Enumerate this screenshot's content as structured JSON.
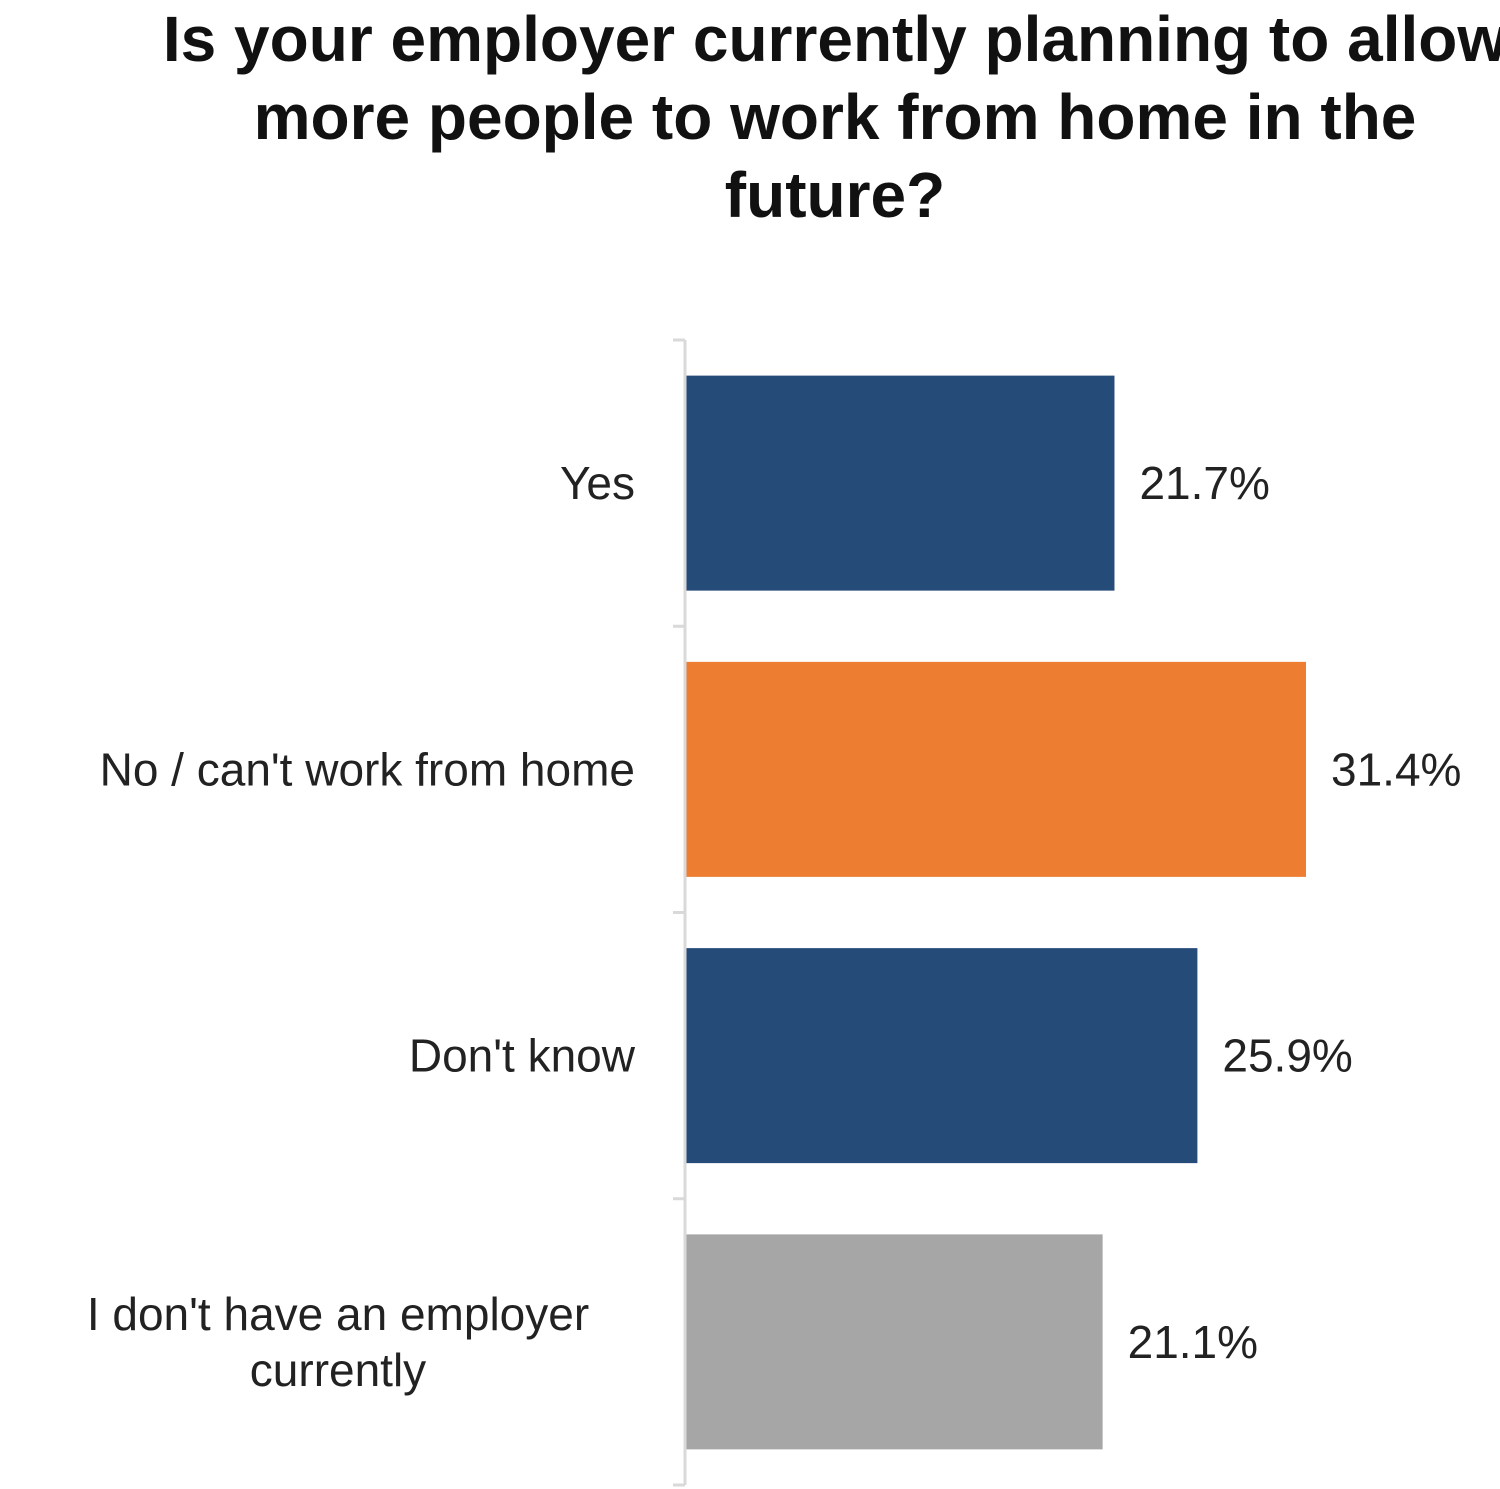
{
  "chart_data": {
    "type": "bar",
    "orientation": "horizontal",
    "title": "Is your employer currently planning to allow more people to work from home in the future?",
    "categories": [
      "Yes",
      "No / can't work from home",
      "Don't know",
      "I don't have an employer currently"
    ],
    "values": [
      21.7,
      31.4,
      25.9,
      21.1
    ],
    "value_labels": [
      "21.7%",
      "31.4%",
      "25.9%",
      "21.1%"
    ],
    "unit": "%",
    "colors": [
      "#254b78",
      "#ed7d31",
      "#254b78",
      "#a6a6a6"
    ],
    "xlim": [
      0,
      31.4
    ],
    "grid": false,
    "legend": "none"
  }
}
